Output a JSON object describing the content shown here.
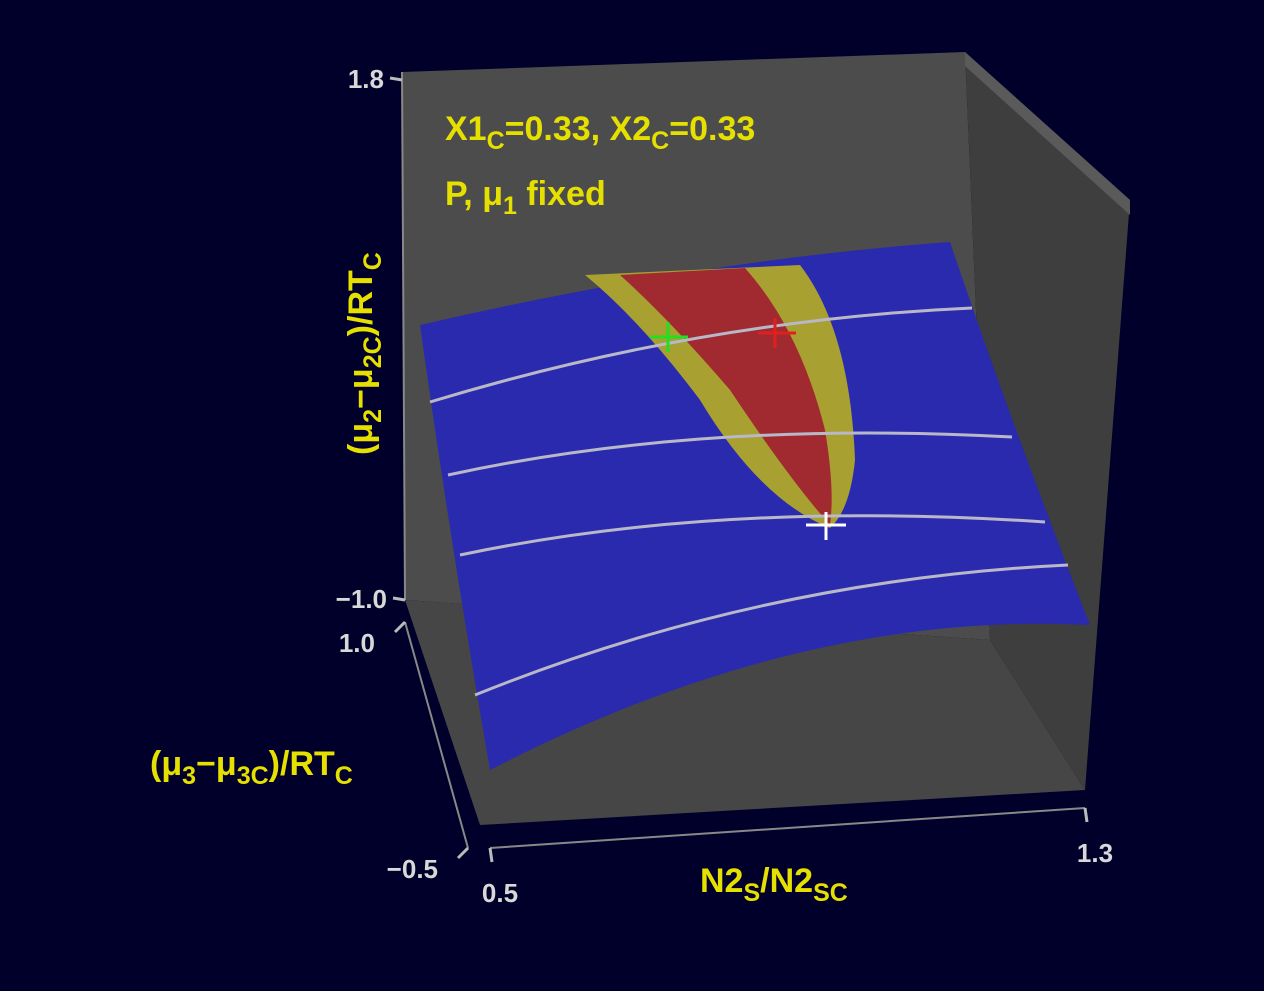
{
  "chart_data": {
    "type": "surface3d",
    "annotations": [
      {
        "parts": [
          "X1",
          "C",
          "=0.33,  X2",
          "C",
          "=0.33"
        ]
      },
      {
        "parts": [
          "P,  μ",
          "1",
          "  fixed"
        ]
      }
    ],
    "xlabel": {
      "parts": [
        "N2",
        "S",
        "/N2",
        "SC"
      ]
    },
    "ylabel": {
      "parts": [
        "(μ",
        "3",
        "−μ",
        "3C",
        ")/RT",
        "C"
      ]
    },
    "zlabel": {
      "parts": [
        "(μ",
        "2",
        "−μ",
        "2C",
        ")/RT",
        "C"
      ]
    },
    "xlim": [
      0.5,
      1.3
    ],
    "xticks": [
      0.5,
      1.3
    ],
    "ylim": [
      -0.5,
      1
    ],
    "yticks": [
      {
        "value": -0.5,
        "label": "−0.5"
      },
      {
        "value": 1,
        "label": "1.0"
      }
    ],
    "zlim": [
      -1,
      1.8
    ],
    "zticks": [
      {
        "value": -1,
        "label": "−1.0"
      },
      1.8
    ]
  }
}
